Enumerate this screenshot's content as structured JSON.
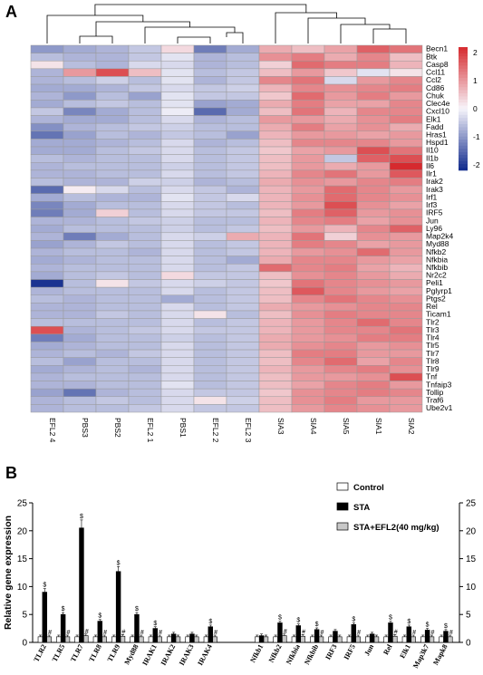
{
  "panels": {
    "a": "A",
    "b": "B"
  },
  "chart_data": [
    {
      "type": "heatmap",
      "samples": [
        "EFL2 4",
        "PBS3",
        "PBS2",
        "EFL2 1",
        "PBS1",
        "EFL2 2",
        "EFL2 3",
        "SIA3",
        "SIA4",
        "SIA5",
        "SIA1",
        "SIA2"
      ],
      "genes": [
        "Becn1",
        "Btk",
        "Casp8",
        "Ccl11",
        "Ccl2",
        "Cd86",
        "Chuk",
        "Clec4e",
        "Cxcl10",
        "Elk1",
        "Fadd",
        "Hras1",
        "Hspd1",
        "Il10",
        "Il1b",
        "Il6",
        "Ilr1",
        "Irak2",
        "Irak3",
        "Irf1",
        "Irf3",
        "IRF5",
        "Jun",
        "Ly96",
        "Map2k4",
        "Myd88",
        "Nfkb2",
        "Nfkbia",
        "Nfkbib",
        "Nr2c2",
        "Peli1",
        "Pglyrp1",
        "Ptgs2",
        "Rel",
        "Ticam1",
        "Tlr2",
        "Tlr3",
        "Tlr4",
        "Tlr5",
        "Tlr7",
        "Tlr8",
        "Tlr9",
        "Tnf",
        "Tnfaip3",
        "Tollip",
        "Traf6",
        "Ube2v1"
      ],
      "values": [
        [
          -1.0,
          -0.8,
          -0.7,
          -0.5,
          0.3,
          -1.3,
          -0.8,
          0.8,
          0.6,
          0.9,
          1.6,
          1.4
        ],
        [
          -0.6,
          -0.7,
          -0.7,
          -0.5,
          -0.2,
          -0.7,
          -0.6,
          1.1,
          1.3,
          0.8,
          1.2,
          0.6
        ],
        [
          0.2,
          -0.6,
          -0.7,
          -0.3,
          -0.3,
          -0.7,
          -0.6,
          0.4,
          1.5,
          1.3,
          1.3,
          0.7
        ],
        [
          -0.7,
          1.0,
          1.8,
          0.6,
          -0.2,
          -0.6,
          -0.5,
          0.6,
          1.0,
          0.5,
          -0.2,
          0.2
        ],
        [
          -0.7,
          -0.6,
          -0.4,
          -0.6,
          -0.2,
          -0.7,
          -0.5,
          1.2,
          1.4,
          -0.3,
          1.0,
          1.2
        ],
        [
          -0.8,
          -0.8,
          -0.7,
          -0.5,
          -0.3,
          -0.5,
          -0.4,
          0.7,
          1.2,
          1.1,
          1.2,
          1.3
        ],
        [
          -0.7,
          -1.0,
          -0.6,
          -0.9,
          -0.2,
          -0.5,
          -0.5,
          0.5,
          1.5,
          1.0,
          1.3,
          1.0
        ],
        [
          -0.8,
          -0.6,
          -0.5,
          -0.6,
          -0.2,
          -0.9,
          -0.8,
          0.8,
          1.3,
          0.9,
          0.9,
          1.2
        ],
        [
          -0.5,
          -1.2,
          -0.8,
          -0.6,
          -0.1,
          -1.5,
          -0.8,
          0.6,
          1.4,
          0.7,
          1.2,
          1.2
        ],
        [
          -0.7,
          -0.8,
          -0.8,
          -0.6,
          -0.3,
          -0.7,
          -0.6,
          1.0,
          1.0,
          0.8,
          1.1,
          1.3
        ],
        [
          -1.1,
          -0.7,
          -0.6,
          -0.5,
          -0.4,
          -0.6,
          -0.6,
          0.8,
          1.3,
          0.9,
          1.1,
          0.8
        ],
        [
          -1.4,
          -0.9,
          -0.6,
          -0.7,
          -0.5,
          -0.6,
          -0.9,
          0.7,
          1.0,
          1.0,
          0.9,
          1.0
        ],
        [
          -0.8,
          -0.8,
          -0.7,
          -0.6,
          -0.3,
          -0.7,
          -0.6,
          0.6,
          1.2,
          1.2,
          1.2,
          1.0
        ],
        [
          -0.8,
          -0.8,
          -0.6,
          -0.5,
          -0.3,
          -0.6,
          -0.5,
          0.5,
          0.9,
          1.0,
          1.8,
          1.4
        ],
        [
          -0.6,
          -0.7,
          -0.6,
          -0.6,
          -0.3,
          -0.6,
          -0.5,
          0.6,
          1.0,
          -0.5,
          1.6,
          1.8
        ],
        [
          -0.7,
          -0.6,
          -0.6,
          -0.6,
          -0.4,
          -0.6,
          -0.5,
          0.6,
          1.0,
          0.8,
          1.0,
          2.2
        ],
        [
          -0.7,
          -0.7,
          -0.6,
          -0.6,
          -0.3,
          -0.6,
          -0.5,
          0.7,
          1.2,
          1.4,
          1.0,
          1.7
        ],
        [
          -0.6,
          -0.7,
          -0.7,
          -0.4,
          -0.4,
          -0.7,
          -0.6,
          0.8,
          1.1,
          1.0,
          1.2,
          1.3
        ],
        [
          -1.5,
          0.1,
          -0.3,
          -0.6,
          -0.3,
          -0.5,
          -0.7,
          0.7,
          1.0,
          1.5,
          1.2,
          1.0
        ],
        [
          -0.8,
          -0.6,
          -0.7,
          -0.7,
          -0.2,
          -0.5,
          -0.3,
          0.7,
          1.1,
          1.5,
          1.2,
          1.1
        ],
        [
          -1.2,
          -0.8,
          -0.6,
          -0.6,
          -0.3,
          -0.5,
          -0.6,
          0.7,
          1.0,
          1.8,
          1.1,
          0.9
        ],
        [
          -1.3,
          -0.8,
          0.4,
          -0.6,
          -0.3,
          -0.5,
          -0.5,
          0.6,
          1.3,
          1.6,
          1.0,
          1.1
        ],
        [
          -0.7,
          -0.7,
          -0.6,
          -0.5,
          -0.4,
          -0.6,
          -0.6,
          0.7,
          1.2,
          1.3,
          0.9,
          1.1
        ],
        [
          -0.8,
          -0.6,
          -0.6,
          -0.6,
          -0.4,
          -0.6,
          -0.5,
          0.6,
          1.0,
          0.7,
          1.2,
          1.6
        ],
        [
          -0.7,
          -1.3,
          -0.8,
          -0.6,
          -0.3,
          -0.4,
          0.8,
          0.7,
          1.4,
          0.4,
          1.1,
          1.0
        ],
        [
          -0.9,
          -0.7,
          -0.5,
          -0.6,
          -0.3,
          -0.6,
          -0.5,
          0.7,
          1.3,
          1.2,
          0.9,
          1.0
        ],
        [
          -0.7,
          -0.6,
          -0.6,
          -0.7,
          -0.3,
          -0.6,
          -0.5,
          0.7,
          1.0,
          1.1,
          1.5,
          1.0
        ],
        [
          -0.8,
          -0.7,
          -0.6,
          -0.6,
          -0.3,
          -0.6,
          -0.8,
          0.8,
          1.2,
          1.2,
          1.0,
          0.9
        ],
        [
          -0.7,
          -0.6,
          -0.6,
          -0.6,
          -0.3,
          -0.6,
          -0.5,
          1.5,
          1.2,
          1.3,
          0.9,
          0.7
        ],
        [
          -0.8,
          -0.6,
          -0.5,
          -0.6,
          0.3,
          -0.5,
          -0.5,
          0.6,
          1.1,
          1.2,
          1.0,
          0.8
        ],
        [
          -2.1,
          -0.6,
          0.2,
          -0.5,
          -0.3,
          -0.4,
          -0.5,
          0.5,
          1.4,
          1.2,
          1.1,
          1.0
        ],
        [
          -0.7,
          -0.6,
          -0.6,
          -0.6,
          -0.3,
          -0.6,
          -0.5,
          0.6,
          1.7,
          1.2,
          1.0,
          0.9
        ],
        [
          -0.6,
          -0.7,
          -0.6,
          -0.6,
          -0.8,
          -0.6,
          -0.5,
          0.6,
          1.2,
          1.4,
          1.2,
          1.1
        ],
        [
          -0.7,
          -0.7,
          -0.6,
          -0.6,
          -0.3,
          -0.6,
          -0.5,
          0.8,
          1.0,
          1.1,
          1.2,
          1.2
        ],
        [
          -0.7,
          -0.7,
          -0.5,
          -0.6,
          -0.3,
          0.2,
          -0.6,
          0.6,
          1.1,
          1.3,
          1.2,
          1.2
        ],
        [
          -0.6,
          -0.6,
          -0.6,
          -0.6,
          -0.3,
          -0.6,
          -0.5,
          0.7,
          1.0,
          1.2,
          1.5,
          1.2
        ],
        [
          1.8,
          -0.7,
          -0.6,
          -0.5,
          -0.3,
          -0.5,
          -0.5,
          0.7,
          1.0,
          1.2,
          1.2,
          1.4
        ],
        [
          -1.3,
          -0.8,
          -0.6,
          -0.6,
          -0.4,
          -0.6,
          -0.5,
          0.8,
          1.0,
          1.1,
          1.3,
          1.3
        ],
        [
          -0.8,
          -0.7,
          -0.6,
          -0.6,
          -0.3,
          -0.6,
          -0.5,
          0.8,
          1.1,
          1.2,
          1.0,
          1.1
        ],
        [
          -0.7,
          -0.6,
          -0.7,
          -0.5,
          -0.3,
          -0.6,
          -0.5,
          0.6,
          1.3,
          1.3,
          1.0,
          1.0
        ],
        [
          -0.6,
          -0.9,
          -0.6,
          -0.6,
          -0.3,
          -0.6,
          -0.5,
          0.6,
          1.2,
          1.5,
          0.9,
          1.2
        ],
        [
          -0.8,
          -0.7,
          -0.6,
          -0.7,
          -0.3,
          -0.6,
          -0.5,
          0.7,
          1.0,
          1.2,
          1.3,
          1.1
        ],
        [
          -0.7,
          -0.6,
          -0.6,
          -0.6,
          -0.3,
          -0.6,
          -0.5,
          0.6,
          1.0,
          1.0,
          1.1,
          1.8
        ],
        [
          -0.7,
          -0.7,
          -0.6,
          -0.6,
          -0.2,
          -0.6,
          -0.5,
          0.6,
          0.9,
          1.2,
          1.3,
          1.0
        ],
        [
          -0.9,
          -1.4,
          -0.7,
          -0.6,
          -0.3,
          -0.5,
          -0.5,
          0.5,
          1.1,
          1.2,
          1.3,
          1.2
        ],
        [
          -0.7,
          -0.6,
          -0.5,
          -0.6,
          -0.3,
          0.2,
          -0.4,
          0.6,
          1.1,
          1.3,
          1.0,
          1.0
        ],
        [
          -0.7,
          -0.6,
          -0.6,
          -0.5,
          -0.3,
          -0.5,
          -0.5,
          0.6,
          1.0,
          1.2,
          1.1,
          1.0
        ]
      ],
      "scale_ticks": [
        2,
        1,
        0,
        -1,
        -2
      ],
      "range": [
        -2.2,
        2.2
      ],
      "colors": {
        "low": "#102a8c",
        "mid": "#f7f5fb",
        "high": "#d62a2e",
        "grid": "#9a9a9a"
      },
      "dendrogram_clusters": [
        [
          "EFL2 4",
          "PBS3",
          "PBS2",
          "EFL2 1",
          "PBS1",
          "EFL2 2",
          "EFL2 3"
        ],
        [
          "SIA3",
          "SIA4",
          "SIA5",
          "SIA1",
          "SIA2"
        ]
      ]
    },
    {
      "type": "bar",
      "ylabel": "Relative gene expression",
      "ylim": [
        0,
        25
      ],
      "yticks": [
        0,
        5,
        10,
        15,
        20,
        25
      ],
      "categories": [
        "TLR2",
        "TLR5",
        "TLR7",
        "TLR8",
        "TLR9",
        "Myd88",
        "IRAK1",
        "IRAK2",
        "IRAK3",
        "IRAK4",
        "Nfkb1",
        "Nfkb2",
        "Nfkbia",
        "Nfkbib",
        "IRF3",
        "IRF5",
        "Jun",
        "Rel",
        "Elk1",
        "Map3k7",
        "Mapk8"
      ],
      "group_gap_after": "IRAK4",
      "series": [
        {
          "name": "Control",
          "values": [
            1.0,
            1.0,
            1.0,
            1.0,
            1.0,
            1.0,
            1.0,
            1.0,
            1.0,
            1.0,
            1.0,
            1.0,
            1.0,
            1.0,
            1.0,
            1.0,
            1.0,
            1.0,
            1.0,
            1.0,
            1.0
          ],
          "fill": "#ffffff"
        },
        {
          "name": "STA",
          "values": [
            9.0,
            5.0,
            20.5,
            3.8,
            12.7,
            5.0,
            2.5,
            1.5,
            1.5,
            2.8,
            1.2,
            3.5,
            3.0,
            2.3,
            2.0,
            3.2,
            1.5,
            3.5,
            2.8,
            2.2,
            2.0
          ],
          "fill": "#000000"
        },
        {
          "name": "STA+EFL2(40 mg/kg)",
          "values": [
            1.0,
            1.0,
            1.2,
            1.0,
            1.1,
            1.0,
            1.0,
            1.0,
            1.0,
            1.0,
            1.0,
            1.2,
            1.1,
            1.0,
            1.0,
            1.0,
            1.0,
            1.1,
            1.0,
            1.0,
            1.0
          ],
          "fill": "#c8c8c8"
        }
      ],
      "annotations": {
        "sta_marker": "$",
        "efl_marker": "#",
        "sta_marked": [
          "TLR2",
          "TLR5",
          "TLR7",
          "TLR8",
          "TLR9",
          "Myd88",
          "IRAK1",
          "IRAK4",
          "Nfkb2",
          "Nfkbia",
          "Nfkbib",
          "IRF5",
          "Rel",
          "Elk1",
          "Map3k7",
          "Mapk8"
        ],
        "efl_marked": [
          "TLR2",
          "TLR5",
          "TLR7",
          "TLR8",
          "TLR9",
          "Myd88",
          "IRAK1",
          "IRAK4",
          "Nfkb2",
          "Nfkbia",
          "Nfkbib",
          "IRF5",
          "Rel",
          "Elk1",
          "Map3k7",
          "Mapk8"
        ]
      }
    }
  ]
}
